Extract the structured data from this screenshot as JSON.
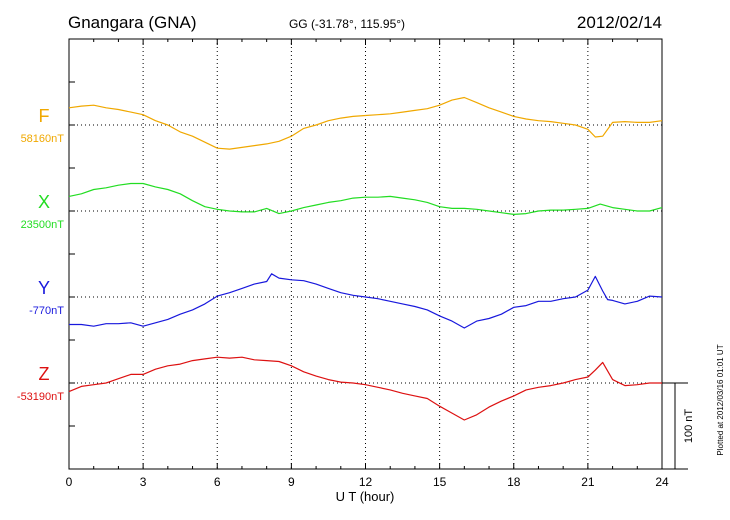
{
  "header": {
    "station": "Gnangara (GNA)",
    "coords": "GG (-31.78°, 115.95°)",
    "date": "2012/02/14"
  },
  "footer_note": "Plotted at 2012/03/16 01:01  UT",
  "chart_data": {
    "type": "line",
    "title": "Gnangara (GNA)",
    "xlabel": "U T (hour)",
    "ylabel": "",
    "xlim": [
      0,
      24
    ],
    "x_ticks": [
      "0",
      "3",
      "6",
      "9",
      "12",
      "15",
      "18",
      "21",
      "24"
    ],
    "grid": true,
    "scale_bar": {
      "label": "100 nT",
      "value_nT": 100
    },
    "series": [
      {
        "name": "F",
        "baseline_label": "58160nT",
        "baseline": 58160,
        "color": "#f0a800",
        "x": [
          0,
          0.5,
          1,
          1.5,
          2,
          2.5,
          3,
          3.5,
          4,
          4.5,
          5,
          5.5,
          6,
          6.5,
          7,
          7.5,
          8,
          8.5,
          9,
          9.5,
          10,
          10.5,
          11,
          11.5,
          12,
          12.5,
          13,
          13.5,
          14,
          14.5,
          15,
          15.5,
          16,
          16.5,
          17,
          17.5,
          18,
          18.5,
          19,
          19.5,
          20,
          20.5,
          21,
          21.3,
          21.6,
          22,
          22.5,
          23,
          23.5,
          24
        ],
        "values": [
          58180,
          58182,
          58183,
          58180,
          58178,
          58175,
          58172,
          58165,
          58160,
          58152,
          58147,
          58140,
          58133,
          58132,
          58134,
          58136,
          58138,
          58141,
          58147,
          58156,
          58160,
          58165,
          58168,
          58170,
          58171,
          58172,
          58173,
          58175,
          58177,
          58179,
          58183,
          58189,
          58192,
          58186,
          58180,
          58175,
          58170,
          58167,
          58165,
          58164,
          58162,
          58160,
          58155,
          58146,
          58147,
          58163,
          58164,
          58163,
          58163,
          58165
        ]
      },
      {
        "name": "X",
        "baseline_label": "23500nT",
        "baseline": 23500,
        "color": "#22dd22",
        "x": [
          0,
          0.5,
          1,
          1.5,
          2,
          2.5,
          3,
          3.5,
          4,
          4.5,
          5,
          5.5,
          6,
          6.5,
          7,
          7.5,
          8,
          8.5,
          9,
          9.5,
          10,
          10.5,
          11,
          11.5,
          12,
          12.5,
          13,
          13.5,
          14,
          14.5,
          15,
          15.5,
          16,
          16.5,
          17,
          17.5,
          18,
          18.5,
          19,
          19.5,
          20,
          20.5,
          21,
          21.5,
          22,
          22.5,
          23,
          23.5,
          24
        ],
        "values": [
          23517,
          23520,
          23525,
          23527,
          23530,
          23532,
          23532,
          23528,
          23525,
          23520,
          23512,
          23505,
          23502,
          23500,
          23499,
          23499,
          23503,
          23497,
          23500,
          23504,
          23507,
          23510,
          23512,
          23515,
          23516,
          23516,
          23517,
          23515,
          23513,
          23510,
          23505,
          23503,
          23503,
          23502,
          23500,
          23498,
          23496,
          23497,
          23500,
          23501,
          23501,
          23502,
          23503,
          23508,
          23504,
          23502,
          23500,
          23500,
          23504
        ]
      },
      {
        "name": "Y",
        "baseline_label": "-770nT",
        "baseline": -770,
        "color": "#1818dd",
        "x": [
          0,
          0.5,
          1,
          1.5,
          2,
          2.5,
          3,
          3.5,
          4,
          4.5,
          5,
          5.5,
          6,
          6.5,
          7,
          7.5,
          8,
          8.2,
          8.5,
          9,
          9.5,
          10,
          10.5,
          11,
          11.5,
          12,
          12.5,
          13,
          13.5,
          14,
          14.5,
          15,
          15.5,
          16,
          16.5,
          17,
          17.5,
          18,
          18.5,
          19,
          19.5,
          20,
          20.5,
          21,
          21.3,
          21.6,
          21.8,
          22,
          22.5,
          23,
          23.5,
          24
        ],
        "values": [
          -802,
          -802,
          -804,
          -801,
          -801,
          -800,
          -804,
          -800,
          -796,
          -790,
          -785,
          -778,
          -769,
          -765,
          -760,
          -755,
          -752,
          -743,
          -748,
          -750,
          -751,
          -755,
          -760,
          -765,
          -768,
          -770,
          -772,
          -775,
          -778,
          -781,
          -785,
          -792,
          -798,
          -806,
          -798,
          -795,
          -790,
          -782,
          -780,
          -775,
          -775,
          -772,
          -770,
          -762,
          -746,
          -763,
          -773,
          -774,
          -778,
          -775,
          -769,
          -770
        ]
      },
      {
        "name": "Z",
        "baseline_label": "-53190nT",
        "baseline": -53190,
        "color": "#dd1111",
        "x": [
          0,
          0.5,
          1,
          1.5,
          2,
          2.5,
          3,
          3.5,
          4,
          4.5,
          5,
          5.5,
          6,
          6.5,
          7,
          7.5,
          8,
          8.5,
          9,
          9.5,
          10,
          10.5,
          11,
          11.5,
          12,
          12.5,
          13,
          13.5,
          14,
          14.5,
          15,
          15.5,
          16,
          16.5,
          17,
          17.5,
          18,
          18.5,
          19,
          19.5,
          20,
          20.5,
          21,
          21.3,
          21.6,
          22,
          22.5,
          23,
          23.5,
          24
        ],
        "values": [
          -53200,
          -53194,
          -53192,
          -53190,
          -53185,
          -53180,
          -53180,
          -53174,
          -53170,
          -53168,
          -53164,
          -53162,
          -53160,
          -53161,
          -53160,
          -53163,
          -53164,
          -53165,
          -53170,
          -53177,
          -53182,
          -53186,
          -53189,
          -53190,
          -53192,
          -53195,
          -53198,
          -53202,
          -53205,
          -53208,
          -53217,
          -53225,
          -53233,
          -53227,
          -53218,
          -53211,
          -53205,
          -53198,
          -53195,
          -53193,
          -53190,
          -53186,
          -53183,
          -53175,
          -53166,
          -53186,
          -53193,
          -53192,
          -53190,
          -53190
        ]
      }
    ]
  }
}
